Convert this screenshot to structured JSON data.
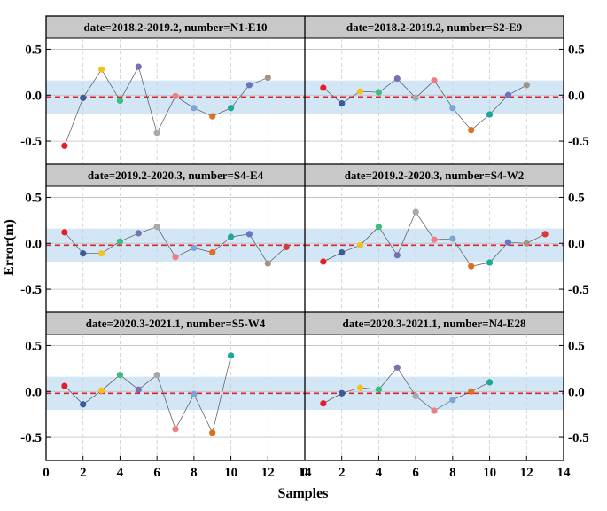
{
  "chart_data": {
    "type": "scatter",
    "xlabel": "Samples",
    "ylabel": "Error(m)",
    "xlim": [
      0,
      14
    ],
    "ylim": [
      -0.75,
      0.62
    ],
    "xticks": [
      0,
      2,
      4,
      6,
      8,
      10,
      12,
      14
    ],
    "xtick_labels": [
      "0",
      "2",
      "4",
      "6",
      "8",
      "10",
      "12",
      "14"
    ],
    "yticks": [
      -0.5,
      0.0,
      0.5
    ],
    "ytick_labels": [
      "-0.5",
      "0.0",
      "0.5"
    ],
    "band": [
      -0.2,
      0.16
    ],
    "reference_line": -0.02,
    "colors": {
      "band": "#d3e6f6",
      "reference_line": "#e0202a",
      "connector": "#555555",
      "title_bg": "#c8c8c8",
      "grid": "#cccccc"
    },
    "point_colors": [
      "#e81c27",
      "#3a5a9a",
      "#f2c31c",
      "#3ac07a",
      "#7a6fb0",
      "#a8a8a8",
      "#f07c86",
      "#7aa6d6",
      "#dd6f1e",
      "#1aa89a",
      "#6a74c4",
      "#a49282",
      "#d83a3a"
    ],
    "panels": [
      {
        "title": "date=2018.2-2019.2, number=N1-E10",
        "x": [
          1,
          2,
          3,
          4,
          5,
          6,
          7,
          8,
          9,
          10,
          11,
          12
        ],
        "y": [
          -0.55,
          -0.03,
          0.28,
          -0.06,
          0.31,
          -0.41,
          -0.01,
          -0.14,
          -0.23,
          -0.14,
          0.11,
          0.19
        ]
      },
      {
        "title": "date=2018.2-2019.2, number=S2-E9",
        "x": [
          1,
          2,
          3,
          4,
          5,
          6,
          7,
          8,
          9,
          10,
          11,
          12
        ],
        "y": [
          0.08,
          -0.09,
          0.04,
          0.03,
          0.18,
          -0.03,
          0.16,
          -0.14,
          -0.38,
          -0.21,
          0.0,
          0.11
        ]
      },
      {
        "title": "date=2019.2-2020.3, number=S4-E4",
        "x": [
          1,
          2,
          3,
          4,
          5,
          6,
          7,
          8,
          9,
          10,
          11,
          12,
          13
        ],
        "y": [
          0.12,
          -0.11,
          -0.11,
          0.02,
          0.11,
          0.18,
          -0.15,
          -0.05,
          -0.1,
          0.07,
          0.1,
          -0.22,
          -0.04
        ]
      },
      {
        "title": "date=2019.2-2020.3, number=S4-W2",
        "x": [
          1,
          2,
          3,
          4,
          5,
          6,
          7,
          8,
          9,
          10,
          11,
          12,
          13
        ],
        "y": [
          -0.2,
          -0.1,
          -0.02,
          0.18,
          -0.13,
          0.34,
          0.04,
          0.05,
          -0.25,
          -0.21,
          0.01,
          0.0,
          0.1
        ]
      },
      {
        "title": "date=2020.3-2021.1, number=S5-W4",
        "x": [
          1,
          2,
          3,
          4,
          5,
          6,
          7,
          8,
          9,
          10
        ],
        "y": [
          0.06,
          -0.14,
          0.01,
          0.18,
          0.02,
          0.18,
          -0.41,
          -0.03,
          -0.45,
          0.39
        ]
      },
      {
        "title": "date=2020.3-2021.1, number=N4-E28",
        "x": [
          1,
          2,
          3,
          4,
          5,
          6,
          7,
          8,
          9,
          10
        ],
        "y": [
          -0.13,
          -0.02,
          0.04,
          0.02,
          0.26,
          -0.05,
          -0.21,
          -0.09,
          0.0,
          0.1
        ]
      }
    ]
  }
}
